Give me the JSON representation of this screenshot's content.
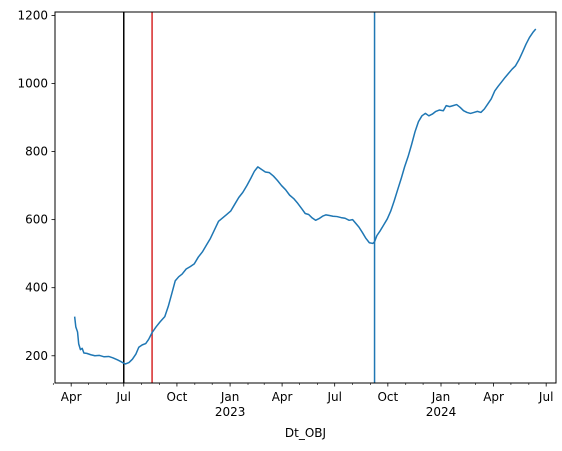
{
  "chart_data": {
    "type": "line",
    "title": "",
    "xlabel": "Dt_OBJ",
    "ylabel": "",
    "grid": false,
    "legend": "none",
    "x_range": [
      "2022-03-04",
      "2024-07-18"
    ],
    "y_range": [
      120,
      1210
    ],
    "y_ticks": [
      200,
      400,
      600,
      800,
      1000,
      1200
    ],
    "x_major_ticks": [
      {
        "date": "2022-04-01",
        "label": "Apr",
        "sublabel": ""
      },
      {
        "date": "2022-07-01",
        "label": "Jul",
        "sublabel": ""
      },
      {
        "date": "2022-10-01",
        "label": "Oct",
        "sublabel": ""
      },
      {
        "date": "2023-01-01",
        "label": "Jan",
        "sublabel": "2023"
      },
      {
        "date": "2023-04-01",
        "label": "Apr",
        "sublabel": ""
      },
      {
        "date": "2023-07-01",
        "label": "Jul",
        "sublabel": ""
      },
      {
        "date": "2023-10-01",
        "label": "Oct",
        "sublabel": ""
      },
      {
        "date": "2024-01-01",
        "label": "Jan",
        "sublabel": "2024"
      },
      {
        "date": "2024-04-01",
        "label": "Apr",
        "sublabel": ""
      },
      {
        "date": "2024-07-01",
        "label": "Jul",
        "sublabel": ""
      }
    ],
    "x_minor_ticks": [
      "2022-03-01",
      "2022-05-01",
      "2022-06-01",
      "2022-08-01",
      "2022-09-01",
      "2022-11-01",
      "2022-12-01",
      "2023-02-01",
      "2023-03-01",
      "2023-05-01",
      "2023-06-01",
      "2023-08-01",
      "2023-09-01",
      "2023-11-01",
      "2023-12-01",
      "2024-02-01",
      "2024-03-01",
      "2024-05-01",
      "2024-06-01"
    ],
    "vlines": [
      {
        "date": "2022-07-01",
        "color": "#000000"
      },
      {
        "date": "2022-08-19",
        "color": "#d62728"
      },
      {
        "date": "2023-09-08",
        "color": "#1f77b4"
      }
    ],
    "series": [
      {
        "color": "#1f77b4",
        "points": [
          [
            "2022-04-07",
            315
          ],
          [
            "2022-04-09",
            285
          ],
          [
            "2022-04-12",
            270
          ],
          [
            "2022-04-14",
            235
          ],
          [
            "2022-04-17",
            218
          ],
          [
            "2022-04-20",
            222
          ],
          [
            "2022-04-23",
            208
          ],
          [
            "2022-04-28",
            207
          ],
          [
            "2022-05-05",
            203
          ],
          [
            "2022-05-12",
            200
          ],
          [
            "2022-05-20",
            201
          ],
          [
            "2022-05-28",
            197
          ],
          [
            "2022-06-05",
            198
          ],
          [
            "2022-06-12",
            194
          ],
          [
            "2022-06-20",
            188
          ],
          [
            "2022-06-26",
            183
          ],
          [
            "2022-07-01",
            178
          ],
          [
            "2022-07-04",
            176
          ],
          [
            "2022-07-10",
            180
          ],
          [
            "2022-07-16",
            190
          ],
          [
            "2022-07-22",
            205
          ],
          [
            "2022-07-27",
            225
          ],
          [
            "2022-08-02",
            232
          ],
          [
            "2022-08-08",
            236
          ],
          [
            "2022-08-13",
            248
          ],
          [
            "2022-08-19",
            268
          ],
          [
            "2022-08-26",
            285
          ],
          [
            "2022-09-02",
            300
          ],
          [
            "2022-09-10",
            315
          ],
          [
            "2022-09-16",
            345
          ],
          [
            "2022-09-22",
            382
          ],
          [
            "2022-09-28",
            420
          ],
          [
            "2022-10-04",
            432
          ],
          [
            "2022-10-10",
            440
          ],
          [
            "2022-10-17",
            455
          ],
          [
            "2022-10-24",
            462
          ],
          [
            "2022-10-31",
            470
          ],
          [
            "2022-11-07",
            490
          ],
          [
            "2022-11-14",
            505
          ],
          [
            "2022-11-21",
            525
          ],
          [
            "2022-11-28",
            545
          ],
          [
            "2022-12-05",
            570
          ],
          [
            "2022-12-12",
            595
          ],
          [
            "2022-12-19",
            605
          ],
          [
            "2022-12-26",
            615
          ],
          [
            "2023-01-02",
            625
          ],
          [
            "2023-01-09",
            645
          ],
          [
            "2023-01-16",
            665
          ],
          [
            "2023-01-23",
            680
          ],
          [
            "2023-01-30",
            700
          ],
          [
            "2023-02-06",
            722
          ],
          [
            "2023-02-12",
            742
          ],
          [
            "2023-02-18",
            755
          ],
          [
            "2023-02-24",
            748
          ],
          [
            "2023-03-03",
            740
          ],
          [
            "2023-03-10",
            738
          ],
          [
            "2023-03-17",
            728
          ],
          [
            "2023-03-24",
            715
          ],
          [
            "2023-03-31",
            700
          ],
          [
            "2023-04-07",
            688
          ],
          [
            "2023-04-14",
            672
          ],
          [
            "2023-04-21",
            662
          ],
          [
            "2023-04-28",
            648
          ],
          [
            "2023-05-05",
            632
          ],
          [
            "2023-05-11",
            618
          ],
          [
            "2023-05-17",
            615
          ],
          [
            "2023-05-23",
            605
          ],
          [
            "2023-05-29",
            598
          ],
          [
            "2023-06-04",
            603
          ],
          [
            "2023-06-10",
            610
          ],
          [
            "2023-06-16",
            614
          ],
          [
            "2023-06-22",
            612
          ],
          [
            "2023-06-28",
            610
          ],
          [
            "2023-07-05",
            609
          ],
          [
            "2023-07-12",
            606
          ],
          [
            "2023-07-19",
            604
          ],
          [
            "2023-07-26",
            598
          ],
          [
            "2023-08-01",
            600
          ],
          [
            "2023-08-06",
            590
          ],
          [
            "2023-08-12",
            578
          ],
          [
            "2023-08-18",
            562
          ],
          [
            "2023-08-24",
            545
          ],
          [
            "2023-08-30",
            532
          ],
          [
            "2023-09-05",
            530
          ],
          [
            "2023-09-08",
            535
          ],
          [
            "2023-09-12",
            553
          ],
          [
            "2023-09-18",
            568
          ],
          [
            "2023-09-24",
            585
          ],
          [
            "2023-09-30",
            602
          ],
          [
            "2023-10-06",
            625
          ],
          [
            "2023-10-12",
            655
          ],
          [
            "2023-10-18",
            688
          ],
          [
            "2023-10-24",
            720
          ],
          [
            "2023-10-30",
            755
          ],
          [
            "2023-11-05",
            785
          ],
          [
            "2023-11-11",
            820
          ],
          [
            "2023-11-17",
            858
          ],
          [
            "2023-11-23",
            888
          ],
          [
            "2023-11-29",
            905
          ],
          [
            "2023-12-05",
            912
          ],
          [
            "2023-12-11",
            905
          ],
          [
            "2023-12-17",
            910
          ],
          [
            "2023-12-23",
            918
          ],
          [
            "2023-12-29",
            922
          ],
          [
            "2024-01-05",
            920
          ],
          [
            "2024-01-10",
            935
          ],
          [
            "2024-01-16",
            932
          ],
          [
            "2024-01-22",
            935
          ],
          [
            "2024-01-28",
            938
          ],
          [
            "2024-02-03",
            930
          ],
          [
            "2024-02-09",
            920
          ],
          [
            "2024-02-15",
            915
          ],
          [
            "2024-02-21",
            912
          ],
          [
            "2024-02-27",
            915
          ],
          [
            "2024-03-04",
            918
          ],
          [
            "2024-03-10",
            915
          ],
          [
            "2024-03-16",
            925
          ],
          [
            "2024-03-22",
            940
          ],
          [
            "2024-03-28",
            955
          ],
          [
            "2024-04-03",
            978
          ],
          [
            "2024-04-09",
            992
          ],
          [
            "2024-04-15",
            1005
          ],
          [
            "2024-04-21",
            1018
          ],
          [
            "2024-04-27",
            1030
          ],
          [
            "2024-05-03",
            1042
          ],
          [
            "2024-05-09",
            1052
          ],
          [
            "2024-05-15",
            1070
          ],
          [
            "2024-05-21",
            1092
          ],
          [
            "2024-05-27",
            1115
          ],
          [
            "2024-06-02",
            1135
          ],
          [
            "2024-06-08",
            1150
          ],
          [
            "2024-06-13",
            1160
          ]
        ]
      }
    ]
  }
}
